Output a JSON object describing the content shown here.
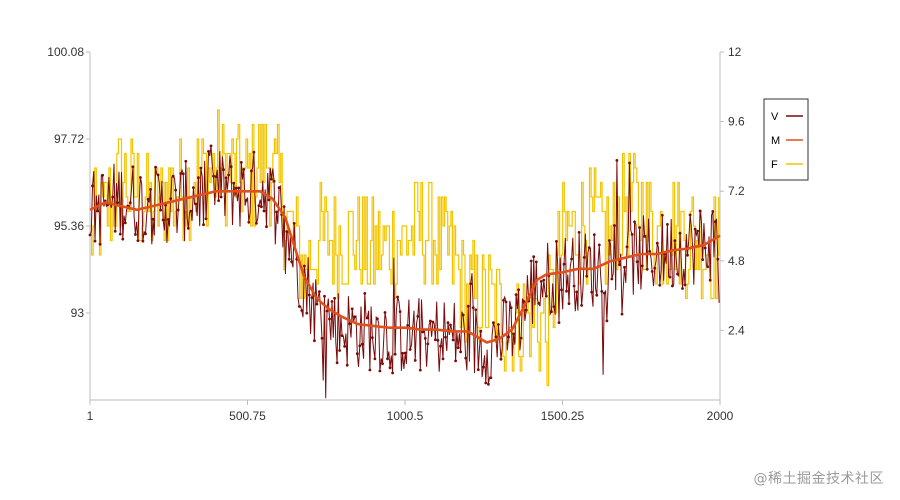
{
  "chart_data": {
    "type": "line",
    "title": "",
    "xlabel": "",
    "ylabel": "",
    "x_ticks": [
      "1",
      "500.75",
      "1000.5",
      "1500.25",
      "2000"
    ],
    "xlim": [
      1,
      2000
    ],
    "left_axis": {
      "ylim": [
        90.64,
        100.08
      ],
      "ticks": [
        "93",
        "95.36",
        "97.72",
        "100.08"
      ]
    },
    "right_axis": {
      "ylim": [
        0,
        12
      ],
      "ticks": [
        "2.4",
        "4.8",
        "7.2",
        "9.6",
        "12"
      ]
    },
    "grid": false,
    "legend": {
      "placement": "right"
    },
    "series": [
      {
        "name": "V",
        "axis": "left",
        "color": "#7a0a0a",
        "markers": true,
        "trend": [
          [
            1,
            95.8
          ],
          [
            100,
            96.1
          ],
          [
            200,
            95.9
          ],
          [
            300,
            96.0
          ],
          [
            400,
            96.4
          ],
          [
            500,
            96.3
          ],
          [
            560,
            96.4
          ],
          [
            610,
            95.6
          ],
          [
            660,
            94.3
          ],
          [
            720,
            93.1
          ],
          [
            800,
            92.6
          ],
          [
            900,
            92.5
          ],
          [
            1000,
            92.4
          ],
          [
            1100,
            92.4
          ],
          [
            1200,
            92.3
          ],
          [
            1250,
            92.1
          ],
          [
            1300,
            92.3
          ],
          [
            1350,
            92.6
          ],
          [
            1400,
            93.6
          ],
          [
            1450,
            93.9
          ],
          [
            1500,
            94.1
          ],
          [
            1600,
            94.2
          ],
          [
            1700,
            94.5
          ],
          [
            1800,
            94.6
          ],
          [
            1900,
            94.8
          ],
          [
            2000,
            95.0
          ]
        ],
        "noise": 1.1
      },
      {
        "name": "M",
        "axis": "left",
        "color": "#e0501a",
        "markers": false,
        "values": [
          [
            1,
            95.8
          ],
          [
            50,
            96.0
          ],
          [
            100,
            95.9
          ],
          [
            150,
            95.8
          ],
          [
            200,
            95.9
          ],
          [
            250,
            96.0
          ],
          [
            300,
            96.1
          ],
          [
            350,
            96.2
          ],
          [
            400,
            96.3
          ],
          [
            450,
            96.3
          ],
          [
            500,
            96.3
          ],
          [
            540,
            96.3
          ],
          [
            580,
            96.1
          ],
          [
            620,
            95.6
          ],
          [
            650,
            94.8
          ],
          [
            680,
            94.0
          ],
          [
            720,
            93.4
          ],
          [
            760,
            93.1
          ],
          [
            800,
            92.9
          ],
          [
            850,
            92.7
          ],
          [
            900,
            92.65
          ],
          [
            950,
            92.6
          ],
          [
            1000,
            92.6
          ],
          [
            1050,
            92.55
          ],
          [
            1100,
            92.55
          ],
          [
            1150,
            92.5
          ],
          [
            1200,
            92.5
          ],
          [
            1230,
            92.35
          ],
          [
            1260,
            92.2
          ],
          [
            1300,
            92.3
          ],
          [
            1340,
            92.55
          ],
          [
            1380,
            93.2
          ],
          [
            1420,
            93.9
          ],
          [
            1450,
            94.05
          ],
          [
            1500,
            94.1
          ],
          [
            1550,
            94.2
          ],
          [
            1600,
            94.2
          ],
          [
            1650,
            94.4
          ],
          [
            1700,
            94.5
          ],
          [
            1750,
            94.6
          ],
          [
            1800,
            94.6
          ],
          [
            1850,
            94.7
          ],
          [
            1900,
            94.75
          ],
          [
            1950,
            94.85
          ],
          [
            2000,
            95.1
          ]
        ]
      },
      {
        "name": "F",
        "axis": "right",
        "color": "#f2c400",
        "markers": false,
        "trend": [
          [
            1,
            5.5
          ],
          [
            100,
            7.5
          ],
          [
            200,
            6.5
          ],
          [
            300,
            7.5
          ],
          [
            400,
            8.0
          ],
          [
            500,
            7.5
          ],
          [
            560,
            8.5
          ],
          [
            620,
            6.5
          ],
          [
            680,
            4.5
          ],
          [
            720,
            5.5
          ],
          [
            780,
            5.5
          ],
          [
            850,
            5.5
          ],
          [
            900,
            5.0
          ],
          [
            1000,
            5.5
          ],
          [
            1050,
            6.0
          ],
          [
            1100,
            5.5
          ],
          [
            1150,
            5.0
          ],
          [
            1200,
            3.5
          ],
          [
            1250,
            3.5
          ],
          [
            1300,
            3.0
          ],
          [
            1350,
            2.5
          ],
          [
            1400,
            3.0
          ],
          [
            1450,
            2.5
          ],
          [
            1500,
            5.5
          ],
          [
            1550,
            6.0
          ],
          [
            1600,
            6.0
          ],
          [
            1650,
            5.5
          ],
          [
            1700,
            7.0
          ],
          [
            1750,
            6.5
          ],
          [
            1800,
            5.5
          ],
          [
            1850,
            6.0
          ],
          [
            1900,
            5.5
          ],
          [
            1950,
            5.5
          ],
          [
            2000,
            5.0
          ]
        ],
        "noise": 2.0
      }
    ]
  },
  "watermark": "@稀土掘金技术社区"
}
